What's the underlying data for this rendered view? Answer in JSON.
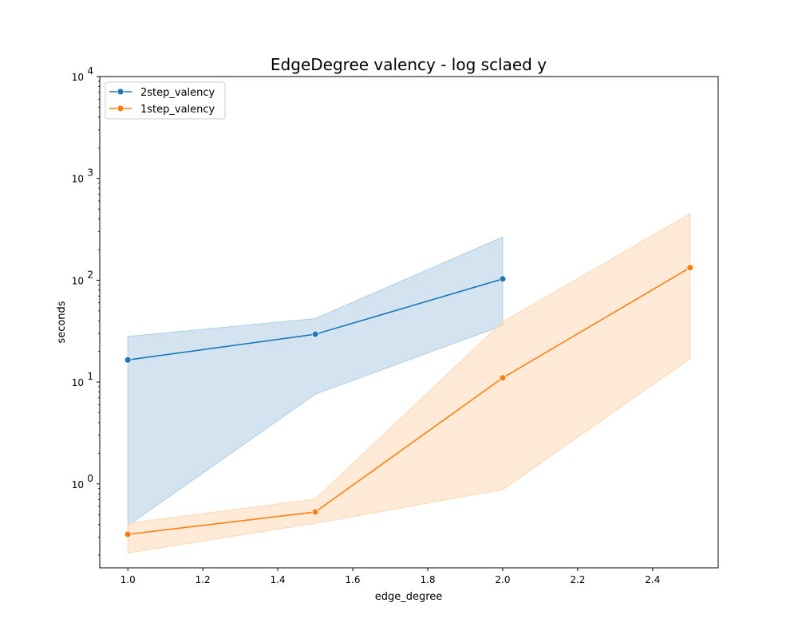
{
  "chart_data": {
    "type": "line",
    "title": "EdgeDegree valency - log sclaed y",
    "xlabel": "edge_degree",
    "ylabel": "seconds",
    "xlim": [
      0.925,
      2.575
    ],
    "ylim": [
      0.15,
      10000
    ],
    "yscale": "log",
    "grid": false,
    "legend_position": "top-left",
    "x_ticks": [
      "1.0",
      "1.2",
      "1.4",
      "1.6",
      "1.8",
      "2.0",
      "2.2",
      "2.4"
    ],
    "x_tick_values": [
      1.0,
      1.2,
      1.4,
      1.6,
      1.8,
      2.0,
      2.2,
      2.4
    ],
    "y_tick_values": [
      1,
      10,
      100,
      1000,
      10000
    ],
    "y_tick_labels": [
      {
        "base": "10",
        "exp": "0"
      },
      {
        "base": "10",
        "exp": "1"
      },
      {
        "base": "10",
        "exp": "2"
      },
      {
        "base": "10",
        "exp": "3"
      },
      {
        "base": "10",
        "exp": "4"
      }
    ],
    "series": [
      {
        "name": "2step_valency",
        "color": "#1f77b4",
        "fill": "#aecde4",
        "x": [
          1.0,
          1.5,
          2.0
        ],
        "y": [
          16.5,
          29.5,
          103
        ],
        "ci_low": [
          0.39,
          7.6,
          36
        ],
        "ci_high": [
          28,
          42,
          265
        ]
      },
      {
        "name": "1step_valency",
        "color": "#ff7f0e",
        "fill": "#fdd8b5",
        "x": [
          1.0,
          1.5,
          2.0,
          2.5
        ],
        "y": [
          0.32,
          0.53,
          11,
          133
        ],
        "ci_low": [
          0.21,
          0.41,
          0.88,
          17
        ],
        "ci_high": [
          0.41,
          0.71,
          39,
          450
        ]
      }
    ]
  }
}
